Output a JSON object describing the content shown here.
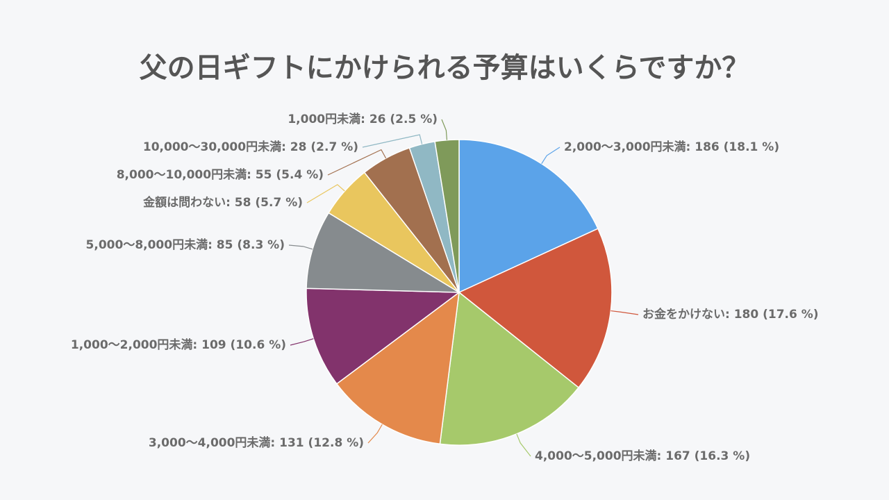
{
  "chart_data": {
    "type": "pie",
    "title": "父の日ギフトにかけられる予算はいくらですか？",
    "values": [
      186,
      180,
      167,
      131,
      109,
      85,
      58,
      55,
      28,
      26
    ],
    "value_labels": [
      "2,000〜3,000円未満: 186 (18.1 %)",
      "お金をかけない: 180 (17.6 %)",
      "4,000〜5,000円未満: 167 (16.3 %)",
      "3,000〜4,000円未満: 131 (12.8 %)",
      "1,000〜2,000円未満: 109 (10.6 %)",
      "5,000〜8,000円未満: 85 (8.3 %)",
      "金額は問わない: 58 (5.7 %)",
      "8,000〜10,000円未満: 55 (5.4 %)",
      "10,000〜30,000円未満: 28 (2.7 %)",
      "1,000円未満: 26 (2.5 %)"
    ],
    "colors": [
      "#5ba3e9",
      "#d0573c",
      "#a6c96b",
      "#e4894b",
      "#82336c",
      "#868b8e",
      "#e9c65e",
      "#a2704f",
      "#90b8c4",
      "#7f9a5a"
    ]
  }
}
